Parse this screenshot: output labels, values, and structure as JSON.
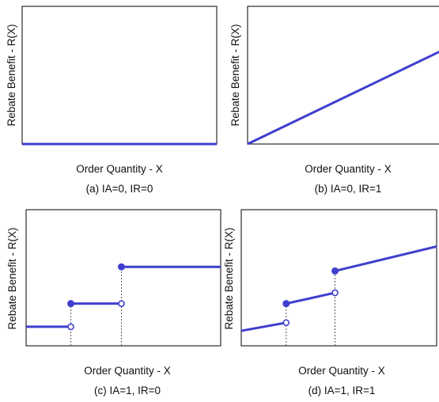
{
  "chart_data": [
    {
      "type": "line",
      "xlabel": "Order Quantity - X",
      "ylabel": "Rebate Benefit -  R(X)",
      "caption": "(a) IA=0, IR=0",
      "series": [
        {
          "segments": [
            [
              [
                0,
                0
              ],
              [
                10,
                0
              ]
            ]
          ]
        }
      ],
      "open_points": [],
      "closed_points": [],
      "breakpoints": []
    },
    {
      "type": "line",
      "xlabel": "Order Quantity - X",
      "ylabel": "Rebate Benefit -  R(X)",
      "caption": "(b) IA=0, IR=1",
      "series": [
        {
          "segments": [
            [
              [
                0,
                0
              ],
              [
                10,
                6.8
              ]
            ]
          ]
        }
      ],
      "open_points": [],
      "closed_points": [],
      "breakpoints": []
    },
    {
      "type": "line",
      "xlabel": "Order Quantity - X",
      "ylabel": "Rebate Benefit -  R(X)",
      "caption": "(c) IA=1, IR=0",
      "series": [
        {
          "segments": [
            [
              [
                0,
                1.4
              ],
              [
                2.3,
                1.4
              ]
            ],
            [
              [
                2.3,
                3.1
              ],
              [
                4.9,
                3.1
              ]
            ],
            [
              [
                4.9,
                5.8
              ],
              [
                10,
                5.8
              ]
            ]
          ]
        }
      ],
      "open_points": [
        [
          2.3,
          1.4
        ],
        [
          4.9,
          3.1
        ]
      ],
      "closed_points": [
        [
          2.3,
          3.1
        ],
        [
          4.9,
          5.8
        ]
      ],
      "breakpoints": [
        2.3,
        4.9
      ]
    },
    {
      "type": "line",
      "xlabel": "Order Quantity - X",
      "ylabel": "Rebate Benefit -  R(X)",
      "caption": "(d) IA=1, IR=1",
      "series": [
        {
          "segments": [
            [
              [
                0,
                1.1
              ],
              [
                2.3,
                1.7
              ]
            ],
            [
              [
                2.3,
                3.1
              ],
              [
                4.8,
                3.9
              ]
            ],
            [
              [
                4.8,
                5.5
              ],
              [
                10,
                7.3
              ]
            ]
          ]
        }
      ],
      "open_points": [
        [
          2.3,
          1.7
        ],
        [
          4.8,
          3.9
        ]
      ],
      "closed_points": [
        [
          2.3,
          3.1
        ],
        [
          4.8,
          5.5
        ]
      ],
      "breakpoints": [
        2.3,
        4.8
      ]
    }
  ],
  "colors": {
    "line": "#3f3fcf",
    "axis": "#000000",
    "guide": "#555555"
  }
}
